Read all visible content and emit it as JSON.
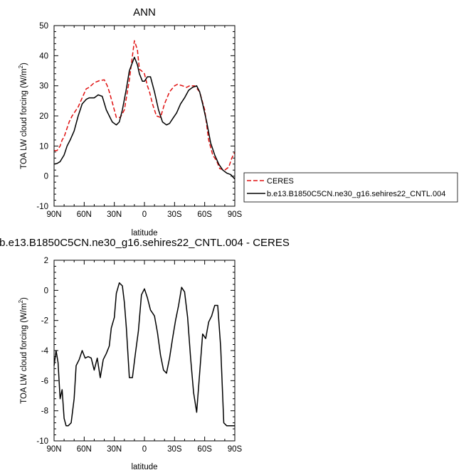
{
  "chart_data": [
    {
      "type": "line",
      "title": "ANN",
      "xlabel": "latitude",
      "ylabel": "TOA LW cloud forcing (W/m²)",
      "ylim": [
        -10,
        50
      ],
      "yticks": [
        -10,
        0,
        10,
        20,
        30,
        40,
        50
      ],
      "xlim": [
        90,
        -90
      ],
      "xticks": [
        90,
        60,
        30,
        0,
        -30,
        -60,
        -90
      ],
      "xtick_labels": [
        "90N",
        "60N",
        "30N",
        "0",
        "30S",
        "60S",
        "90S"
      ],
      "grid": false,
      "legend_position": "right",
      "legend": [
        {
          "name": "CERES",
          "color": "#e01010",
          "dash": true
        },
        {
          "name": "b.e13.B1850C5CN.ne30_g16.sehires22_CNTL.004",
          "color": "#000000",
          "dash": false
        }
      ],
      "series": [
        {
          "name": "CERES",
          "color": "#e01010",
          "dashed": true,
          "x": [
            90,
            87,
            84,
            82,
            80,
            78,
            75,
            72,
            70,
            66,
            62,
            58,
            55,
            50,
            45,
            40,
            37,
            35,
            32,
            28,
            24,
            20,
            15,
            10,
            7,
            5,
            3,
            0,
            -3,
            -5,
            -8,
            -12,
            -16,
            -20,
            -25,
            -30,
            -33,
            -38,
            -42,
            -45,
            -50,
            -55,
            -60,
            -64,
            -68,
            -72,
            -75,
            -80,
            -84,
            -87,
            -90
          ],
          "values": [
            8.5,
            8.5,
            10,
            12,
            13,
            15,
            18,
            20,
            21,
            23,
            26,
            29,
            29.5,
            31,
            31.7,
            32,
            30,
            28,
            24.5,
            19.5,
            19.5,
            22,
            32,
            45,
            42,
            35.5,
            35,
            34,
            30,
            28,
            24,
            20,
            19.5,
            24,
            28,
            30,
            30.5,
            30,
            29.5,
            30,
            30,
            28,
            22,
            12,
            7,
            5,
            2.5,
            2,
            3,
            6,
            8
          ]
        },
        {
          "name": "b.e13.B1850C5CN.ne30_g16.sehires22_CNTL.004",
          "color": "#000000",
          "dashed": false,
          "x": [
            90,
            87,
            84,
            80,
            77,
            74,
            70,
            66,
            62,
            58,
            55,
            50,
            46,
            42,
            38,
            35,
            32,
            28,
            25,
            22,
            18,
            15,
            10,
            7,
            5,
            2,
            0,
            -3,
            -6,
            -10,
            -14,
            -18,
            -22,
            -25,
            -28,
            -32,
            -36,
            -40,
            -44,
            -48,
            -52,
            -55,
            -58,
            -62,
            -66,
            -70,
            -74,
            -78,
            -82,
            -86,
            -90
          ],
          "values": [
            4,
            4.2,
            4.8,
            7,
            10,
            12,
            15,
            20,
            24,
            25.5,
            26,
            26,
            27,
            26.5,
            22,
            20,
            18,
            17,
            18,
            22,
            29,
            35,
            39.5,
            37,
            34,
            31.5,
            31.5,
            33,
            33,
            28,
            22,
            18,
            17,
            17.5,
            19,
            21,
            24,
            26,
            28.5,
            29.5,
            30,
            28,
            24,
            18,
            11,
            7,
            4,
            2,
            1,
            0.5,
            -1
          ]
        }
      ]
    },
    {
      "type": "line",
      "title": "b.e13.B1850C5CN.ne30_g16.sehires22_CNTL.004 - CERES",
      "xlabel": "latitude",
      "ylabel": "TOA LW cloud forcing (W/m²)",
      "ylim": [
        -10,
        2
      ],
      "yticks": [
        -10,
        -8,
        -6,
        -4,
        -2,
        0,
        2
      ],
      "xlim": [
        90,
        -90
      ],
      "xticks": [
        90,
        60,
        30,
        0,
        -30,
        -60,
        -90
      ],
      "xtick_labels": [
        "90N",
        "60N",
        "30N",
        "0",
        "30S",
        "60S",
        "90S"
      ],
      "grid": false,
      "series": [
        {
          "name": "",
          "color": "#000000",
          "dashed": false,
          "x": [
            90,
            88,
            86,
            84,
            82,
            80,
            78,
            76,
            73,
            70,
            68,
            65,
            62,
            59,
            56,
            53,
            50,
            47,
            44,
            41,
            38,
            35,
            33,
            30,
            28,
            25,
            22,
            20,
            18,
            15,
            12,
            9,
            6,
            3,
            0,
            -3,
            -6,
            -8,
            -10,
            -13,
            -16,
            -19,
            -22,
            -25,
            -28,
            -31,
            -34,
            -37,
            -40,
            -43,
            -46,
            -49,
            -52,
            -55,
            -58,
            -61,
            -64,
            -67,
            -70,
            -73,
            -76,
            -79,
            -82,
            -85,
            -88,
            -90
          ],
          "values": [
            -5,
            -4,
            -4.8,
            -7.2,
            -6.6,
            -8.5,
            -9,
            -9,
            -8.8,
            -7.2,
            -5,
            -4.6,
            -4,
            -4.5,
            -4.4,
            -4.5,
            -5.3,
            -4.5,
            -5.8,
            -4.6,
            -4.2,
            -3.7,
            -2.5,
            -1.8,
            -0.2,
            0.5,
            0.3,
            -0.8,
            -2.5,
            -5.8,
            -5.8,
            -4.2,
            -2.7,
            -0.3,
            0.1,
            -0.5,
            -1.3,
            -1.5,
            -1.7,
            -2.8,
            -4.3,
            -5.3,
            -5.5,
            -4.5,
            -3.2,
            -2,
            -1,
            0.2,
            -0.1,
            -1.8,
            -4.5,
            -6.8,
            -8.1,
            -5.5,
            -2.9,
            -3.2,
            -2.1,
            -1.7,
            -1,
            -1,
            -3.8,
            -8.8,
            -9,
            -9,
            -9,
            -9
          ]
        }
      ]
    }
  ]
}
